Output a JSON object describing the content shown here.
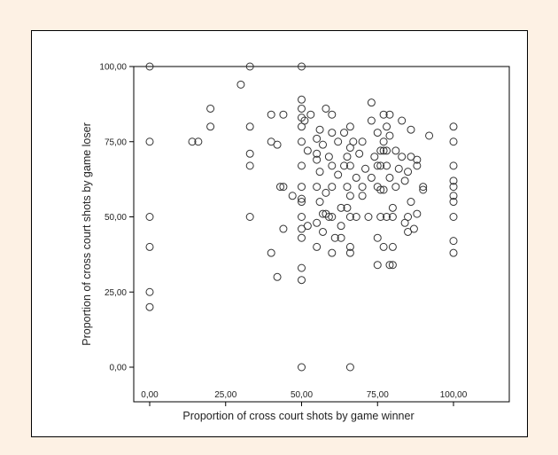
{
  "chart_data": {
    "type": "scatter",
    "title": "",
    "xlabel": "Proportion of cross court shots by game winner",
    "ylabel": "Proportion of cross court shots by game loser",
    "xlim": [
      0,
      100
    ],
    "ylim": [
      0,
      100
    ],
    "xticks": [
      "0,00",
      "25,00",
      "50,00",
      "75,00",
      "100,00"
    ],
    "yticks": [
      "0,00",
      "25,00",
      "50,00",
      "75,00",
      "100,00"
    ],
    "xtick_values": [
      0,
      25,
      50,
      75,
      100
    ],
    "ytick_values": [
      0,
      25,
      50,
      75,
      100
    ],
    "grid": false,
    "marker": "open-circle",
    "colors": {
      "marker": "#333333",
      "frame": "#000000",
      "background": "#fdf1e4"
    },
    "points": [
      [
        0,
        100
      ],
      [
        0,
        75
      ],
      [
        0,
        50
      ],
      [
        0,
        40
      ],
      [
        0,
        25
      ],
      [
        0,
        20
      ],
      [
        14,
        75
      ],
      [
        16,
        75
      ],
      [
        20,
        80
      ],
      [
        20,
        86
      ],
      [
        30,
        94
      ],
      [
        33,
        100
      ],
      [
        33,
        80
      ],
      [
        33,
        71
      ],
      [
        33,
        67
      ],
      [
        33,
        50
      ],
      [
        40,
        84
      ],
      [
        40,
        75
      ],
      [
        40,
        38
      ],
      [
        42,
        74
      ],
      [
        42,
        30
      ],
      [
        43,
        60
      ],
      [
        44,
        84
      ],
      [
        44,
        60
      ],
      [
        44,
        46
      ],
      [
        47,
        57
      ],
      [
        50,
        100
      ],
      [
        50,
        89
      ],
      [
        50,
        86
      ],
      [
        50,
        83
      ],
      [
        50,
        80
      ],
      [
        50,
        75
      ],
      [
        50,
        67
      ],
      [
        50,
        60
      ],
      [
        50,
        56
      ],
      [
        50,
        55
      ],
      [
        50,
        50
      ],
      [
        50,
        46
      ],
      [
        50,
        43
      ],
      [
        50,
        33
      ],
      [
        50,
        29
      ],
      [
        50,
        0
      ],
      [
        51,
        82
      ],
      [
        52,
        72
      ],
      [
        52,
        47
      ],
      [
        53,
        84
      ],
      [
        55,
        76
      ],
      [
        55,
        71
      ],
      [
        55,
        69
      ],
      [
        55,
        60
      ],
      [
        55,
        48
      ],
      [
        55,
        40
      ],
      [
        56,
        79
      ],
      [
        56,
        65
      ],
      [
        56,
        55
      ],
      [
        57,
        74
      ],
      [
        57,
        51
      ],
      [
        57,
        45
      ],
      [
        58,
        51
      ],
      [
        58,
        58
      ],
      [
        58,
        86
      ],
      [
        59,
        70
      ],
      [
        59,
        50
      ],
      [
        60,
        84
      ],
      [
        60,
        78
      ],
      [
        60,
        67
      ],
      [
        60,
        60
      ],
      [
        60,
        50
      ],
      [
        60,
        38
      ],
      [
        61,
        43
      ],
      [
        62,
        75
      ],
      [
        62,
        64
      ],
      [
        63,
        53
      ],
      [
        63,
        47
      ],
      [
        63,
        43
      ],
      [
        64,
        78
      ],
      [
        64,
        67
      ],
      [
        65,
        70
      ],
      [
        65,
        60
      ],
      [
        65,
        53
      ],
      [
        66,
        0
      ],
      [
        66,
        38
      ],
      [
        66,
        40
      ],
      [
        66,
        50
      ],
      [
        66,
        57
      ],
      [
        66,
        67
      ],
      [
        66,
        73
      ],
      [
        66,
        80
      ],
      [
        67,
        75
      ],
      [
        68,
        63
      ],
      [
        68,
        50
      ],
      [
        69,
        71
      ],
      [
        70,
        60
      ],
      [
        70,
        75
      ],
      [
        70,
        57
      ],
      [
        71,
        66
      ],
      [
        72,
        50
      ],
      [
        73,
        82
      ],
      [
        73,
        88
      ],
      [
        73,
        63
      ],
      [
        74,
        70
      ],
      [
        75,
        78
      ],
      [
        75,
        67
      ],
      [
        75,
        60
      ],
      [
        75,
        43
      ],
      [
        75,
        34
      ],
      [
        76,
        72
      ],
      [
        76,
        67
      ],
      [
        76,
        59
      ],
      [
        76,
        50
      ],
      [
        77,
        84
      ],
      [
        77,
        75
      ],
      [
        77,
        59
      ],
      [
        77,
        72
      ],
      [
        77,
        40
      ],
      [
        78,
        80
      ],
      [
        78,
        72
      ],
      [
        78,
        50
      ],
      [
        78,
        67
      ],
      [
        79,
        84
      ],
      [
        79,
        77
      ],
      [
        79,
        34
      ],
      [
        79,
        63
      ],
      [
        80,
        53
      ],
      [
        80,
        50
      ],
      [
        80,
        40
      ],
      [
        80,
        34
      ],
      [
        81,
        72
      ],
      [
        81,
        60
      ],
      [
        82,
        66
      ],
      [
        83,
        82
      ],
      [
        83,
        70
      ],
      [
        84,
        62
      ],
      [
        84,
        48
      ],
      [
        85,
        65
      ],
      [
        85,
        50
      ],
      [
        85,
        45
      ],
      [
        86,
        79
      ],
      [
        86,
        70
      ],
      [
        86,
        55
      ],
      [
        87,
        46
      ],
      [
        88,
        67
      ],
      [
        88,
        69
      ],
      [
        88,
        51
      ],
      [
        90,
        60
      ],
      [
        90,
        59
      ],
      [
        92,
        77
      ],
      [
        100,
        80
      ],
      [
        100,
        75
      ],
      [
        100,
        67
      ],
      [
        100,
        62
      ],
      [
        100,
        60
      ],
      [
        100,
        57
      ],
      [
        100,
        55
      ],
      [
        100,
        50
      ],
      [
        100,
        42
      ],
      [
        100,
        38
      ]
    ]
  }
}
